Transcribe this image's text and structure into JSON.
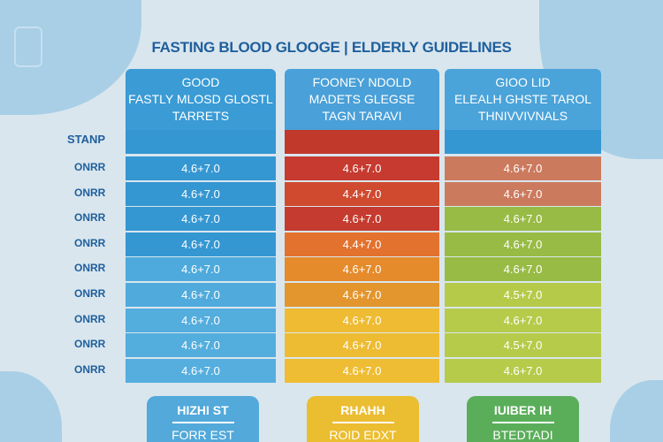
{
  "title": "FASTING BLOOD GLOOGE | ELDERLY GUIDELINES",
  "side_label": "STANP",
  "row_label": "ONRR",
  "columns": [
    {
      "header": [
        "GOOD",
        "FASTLY MLOSD GLOSTL",
        "TARRETS"
      ],
      "color": "#3a9bd5",
      "values": [
        "4.6+7.0",
        "4.6+7.0",
        "4.6+7.0",
        "4.6+7.0",
        "4.6+7.0",
        "4.6+7.0",
        "4.6+7.0",
        "4.6+7.0",
        "4.6+7.0"
      ],
      "colors": [
        "#3597d2",
        "#3597d2",
        "#3597d2",
        "#3597d2",
        "#4eaadc",
        "#50abdc",
        "#53addd",
        "#53addd",
        "#55aede"
      ]
    },
    {
      "header": [
        "FOONEY NDOLD",
        "MADETS GLEGSE",
        "TAGN TARAVI"
      ],
      "color": "#4aa0d8",
      "bar_color": "#c0392b",
      "values": [
        "4.6+7.0",
        "4.4+7.0",
        "4.6+7.0",
        "4.4+7.0",
        "4.6+7.0",
        "4.6+7.0",
        "4.6+7.0",
        "4.6+7.0",
        "4.6+7.0"
      ],
      "colors": [
        "#c63a2f",
        "#d04a2f",
        "#c53b2f",
        "#e2722e",
        "#e58b2c",
        "#e3962e",
        "#eebb32",
        "#eebc33",
        "#efbd33"
      ]
    },
    {
      "header": [
        "GIOO LID",
        "ELEALH GHSTE TAROL",
        "THNIVVIVNALS"
      ],
      "color": "#4aa3d9",
      "values": [
        "4.6+7.0",
        "4.6+7.0",
        "4.6+7.0",
        "4.6+7.0",
        "4.6+7.0",
        "4.5+7.0",
        "4.6+7.0",
        "4.5+7.0",
        "4.6+7.0"
      ],
      "colors": [
        "#cc7a5e",
        "#cc7a5e",
        "#98bb45",
        "#98bb45",
        "#98bb45",
        "#b6ca4a",
        "#b6cb4a",
        "#b6cb4a",
        "#b6cb4a"
      ]
    }
  ],
  "cards": [
    {
      "title": "HIZHI ST",
      "sub": "FORR EST",
      "color": "#52a9da"
    },
    {
      "title": "RHAHH",
      "sub": "ROID EDXT",
      "color": "#ebbd30"
    },
    {
      "title": "IUIBER IH",
      "sub": "BTEDTADI",
      "color": "#5aae5a"
    }
  ]
}
